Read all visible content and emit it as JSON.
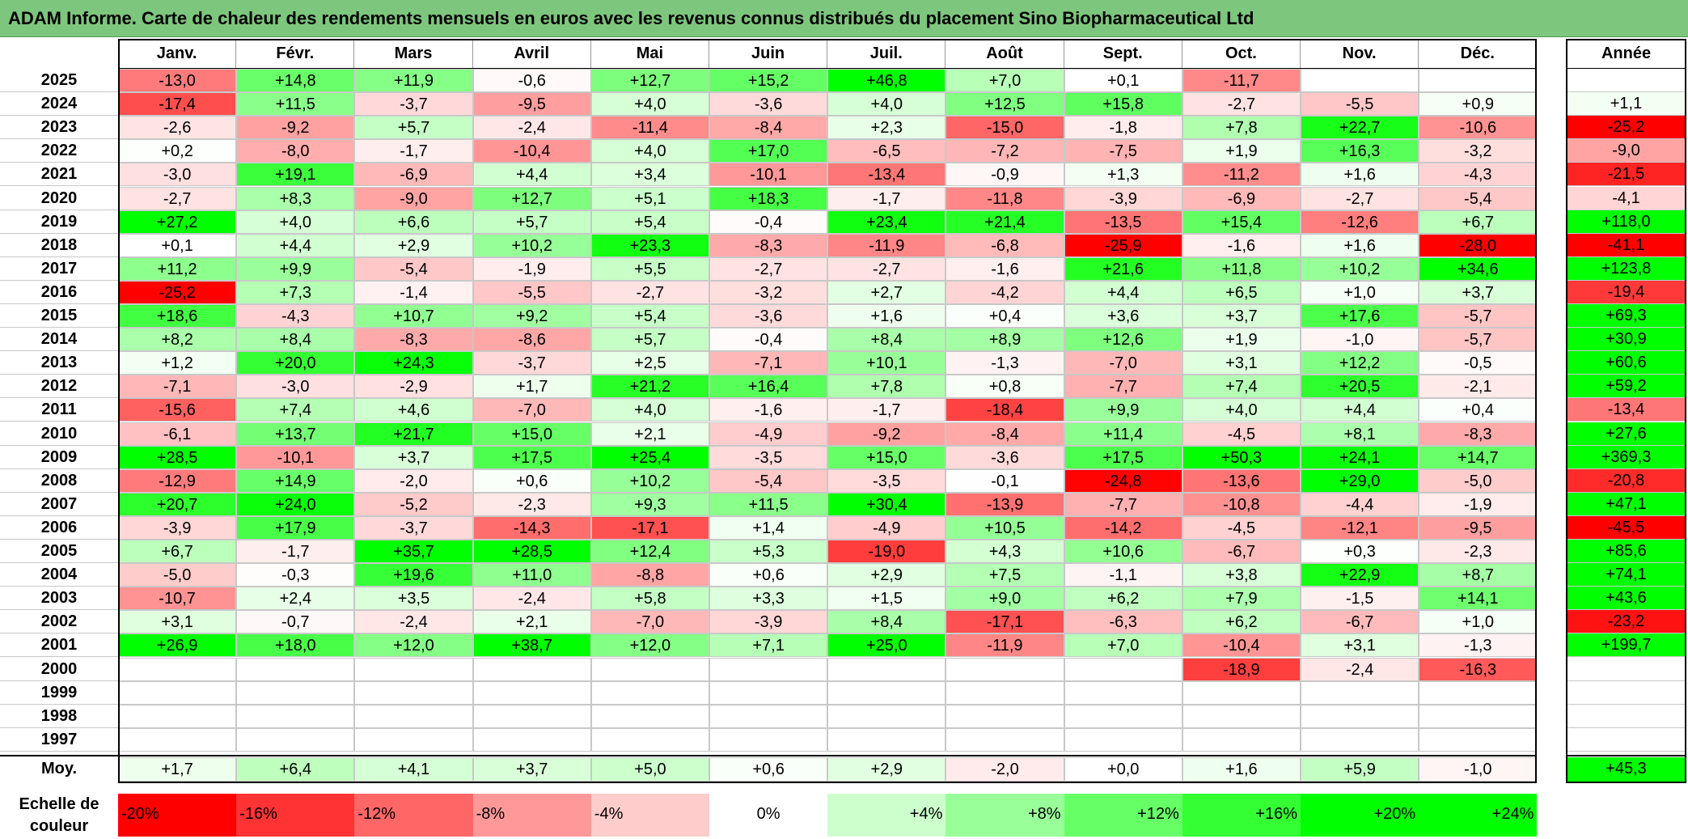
{
  "title": "ADAM Informe. Carte de chaleur des rendements mensuels en euros avec les revenus connus distribués du placement Sino Biopharmaceutical Ltd",
  "colors": {
    "title_bar": "#7dc67d",
    "max_positive": "#00ff00",
    "max_negative": "#ff0000",
    "neutral": "#ffffff"
  },
  "chart_data": {
    "type": "heatmap",
    "title": "ADAM Informe. Carte de chaleur des rendements mensuels en euros avec les revenus connus distribués du placement Sino Biopharmaceutical Ltd",
    "months": [
      "Janv.",
      "Févr.",
      "Mars",
      "Avril",
      "Mai",
      "Juin",
      "Juil.",
      "Août",
      "Sept.",
      "Oct.",
      "Nov.",
      "Déc."
    ],
    "year_column_label": "Année",
    "rows": [
      {
        "year": "2025",
        "values": [
          "-13,0",
          "+14,8",
          "+11,9",
          "-0,6",
          "+12,7",
          "+15,2",
          "+46,8",
          "+7,0",
          "+0,1",
          "-11,7",
          "",
          ""
        ],
        "annual": ""
      },
      {
        "year": "2024",
        "values": [
          "-17,4",
          "+11,5",
          "-3,7",
          "-9,5",
          "+4,0",
          "-3,6",
          "+4,0",
          "+12,5",
          "+15,8",
          "-2,7",
          "-5,5",
          "+0,9"
        ],
        "annual": "+1,1"
      },
      {
        "year": "2023",
        "values": [
          "-2,6",
          "-9,2",
          "+5,7",
          "-2,4",
          "-11,4",
          "-8,4",
          "+2,3",
          "-15,0",
          "-1,8",
          "+7,8",
          "+22,7",
          "-10,6"
        ],
        "annual": "-25,2"
      },
      {
        "year": "2022",
        "values": [
          "+0,2",
          "-8,0",
          "-1,7",
          "-10,4",
          "+4,0",
          "+17,0",
          "-6,5",
          "-7,2",
          "-7,5",
          "+1,9",
          "+16,3",
          "-3,2"
        ],
        "annual": "-9,0"
      },
      {
        "year": "2021",
        "values": [
          "-3,0",
          "+19,1",
          "-6,9",
          "+4,4",
          "+3,4",
          "-10,1",
          "-13,4",
          "-0,9",
          "+1,3",
          "-11,2",
          "+1,6",
          "-4,3"
        ],
        "annual": "-21,5"
      },
      {
        "year": "2020",
        "values": [
          "-2,7",
          "+8,3",
          "-9,0",
          "+12,7",
          "+5,1",
          "+18,3",
          "-1,7",
          "-11,8",
          "-3,9",
          "-6,9",
          "-2,7",
          "-5,4"
        ],
        "annual": "-4,1"
      },
      {
        "year": "2019",
        "values": [
          "+27,2",
          "+4,0",
          "+6,6",
          "+5,7",
          "+5,4",
          "-0,4",
          "+23,4",
          "+21,4",
          "-13,5",
          "+15,4",
          "-12,6",
          "+6,7"
        ],
        "annual": "+118,0"
      },
      {
        "year": "2018",
        "values": [
          "+0,1",
          "+4,4",
          "+2,9",
          "+10,2",
          "+23,3",
          "-8,3",
          "-11,9",
          "-6,8",
          "-25,9",
          "-1,6",
          "+1,6",
          "-28,0"
        ],
        "annual": "-41,1"
      },
      {
        "year": "2017",
        "values": [
          "+11,2",
          "+9,9",
          "-5,4",
          "-1,9",
          "+5,5",
          "-2,7",
          "-2,7",
          "-1,6",
          "+21,6",
          "+11,8",
          "+10,2",
          "+34,6"
        ],
        "annual": "+123,8"
      },
      {
        "year": "2016",
        "values": [
          "-25,2",
          "+7,3",
          "-1,4",
          "-5,5",
          "-2,7",
          "-3,2",
          "+2,7",
          "-4,2",
          "+4,4",
          "+6,5",
          "+1,0",
          "+3,7"
        ],
        "annual": "-19,4"
      },
      {
        "year": "2015",
        "values": [
          "+18,6",
          "-4,3",
          "+10,7",
          "+9,2",
          "+5,4",
          "-3,6",
          "+1,6",
          "+0,4",
          "+3,6",
          "+3,7",
          "+17,6",
          "-5,7"
        ],
        "annual": "+69,3"
      },
      {
        "year": "2014",
        "values": [
          "+8,2",
          "+8,4",
          "-8,3",
          "-8,6",
          "+5,7",
          "-0,4",
          "+8,4",
          "+8,9",
          "+12,6",
          "+1,9",
          "-1,0",
          "-5,7"
        ],
        "annual": "+30,9"
      },
      {
        "year": "2013",
        "values": [
          "+1,2",
          "+20,0",
          "+24,3",
          "-3,7",
          "+2,5",
          "-7,1",
          "+10,1",
          "-1,3",
          "-7,0",
          "+3,1",
          "+12,2",
          "-0,5"
        ],
        "annual": "+60,6"
      },
      {
        "year": "2012",
        "values": [
          "-7,1",
          "-3,0",
          "-2,9",
          "+1,7",
          "+21,2",
          "+16,4",
          "+7,8",
          "+0,8",
          "-7,7",
          "+7,4",
          "+20,5",
          "-2,1"
        ],
        "annual": "+59,2"
      },
      {
        "year": "2011",
        "values": [
          "-15,6",
          "+7,4",
          "+4,6",
          "-7,0",
          "+4,0",
          "-1,6",
          "-1,7",
          "-18,4",
          "+9,9",
          "+4,0",
          "+4,4",
          "+0,4"
        ],
        "annual": "-13,4"
      },
      {
        "year": "2010",
        "values": [
          "-6,1",
          "+13,7",
          "+21,7",
          "+15,0",
          "+2,1",
          "-4,9",
          "-9,2",
          "-8,4",
          "+11,4",
          "-4,5",
          "+8,1",
          "-8,3"
        ],
        "annual": "+27,6"
      },
      {
        "year": "2009",
        "values": [
          "+28,5",
          "-10,1",
          "+3,7",
          "+17,5",
          "+25,4",
          "-3,5",
          "+15,0",
          "-3,6",
          "+17,5",
          "+50,3",
          "+24,1",
          "+14,7"
        ],
        "annual": "+369,3"
      },
      {
        "year": "2008",
        "values": [
          "-12,9",
          "+14,9",
          "-2,0",
          "+0,6",
          "+10,2",
          "-5,4",
          "-3,5",
          "-0,1",
          "-24,8",
          "-13,6",
          "+29,0",
          "-5,0"
        ],
        "annual": "-20,8"
      },
      {
        "year": "2007",
        "values": [
          "+20,7",
          "+24,0",
          "-5,2",
          "-2,3",
          "+9,3",
          "+11,5",
          "+30,4",
          "-13,9",
          "-7,7",
          "-10,8",
          "-4,4",
          "-1,9"
        ],
        "annual": "+47,1"
      },
      {
        "year": "2006",
        "values": [
          "-3,9",
          "+17,9",
          "-3,7",
          "-14,3",
          "-17,1",
          "+1,4",
          "-4,9",
          "+10,5",
          "-14,2",
          "-4,5",
          "-12,1",
          "-9,5"
        ],
        "annual": "-45,5"
      },
      {
        "year": "2005",
        "values": [
          "+6,7",
          "-1,7",
          "+35,7",
          "+28,5",
          "+12,4",
          "+5,3",
          "-19,0",
          "+4,3",
          "+10,6",
          "-6,7",
          "+0,3",
          "-2,3"
        ],
        "annual": "+85,6"
      },
      {
        "year": "2004",
        "values": [
          "-5,0",
          "-0,3",
          "+19,6",
          "+11,0",
          "-8,8",
          "+0,6",
          "+2,9",
          "+7,5",
          "-1,1",
          "+3,8",
          "+22,9",
          "+8,7"
        ],
        "annual": "+74,1"
      },
      {
        "year": "2003",
        "values": [
          "-10,7",
          "+2,4",
          "+3,5",
          "-2,4",
          "+5,8",
          "+3,3",
          "+1,5",
          "+9,0",
          "+6,2",
          "+7,9",
          "-1,5",
          "+14,1"
        ],
        "annual": "+43,6"
      },
      {
        "year": "2002",
        "values": [
          "+3,1",
          "-0,7",
          "-2,4",
          "+2,1",
          "-7,0",
          "-3,9",
          "+8,4",
          "-17,1",
          "-6,3",
          "+6,2",
          "-6,7",
          "+1,0"
        ],
        "annual": "-23,2"
      },
      {
        "year": "2001",
        "values": [
          "+26,9",
          "+18,0",
          "+12,0",
          "+38,7",
          "+12,0",
          "+7,1",
          "+25,0",
          "-11,9",
          "+7,0",
          "-10,4",
          "+3,1",
          "-1,3"
        ],
        "annual": "+199,7"
      },
      {
        "year": "2000",
        "values": [
          "",
          "",
          "",
          "",
          "",
          "",
          "",
          "",
          "",
          "-18,9",
          "-2,4",
          "-16,3"
        ],
        "annual": ""
      },
      {
        "year": "1999",
        "values": [
          "",
          "",
          "",
          "",
          "",
          "",
          "",
          "",
          "",
          "",
          "",
          ""
        ],
        "annual": ""
      },
      {
        "year": "1998",
        "values": [
          "",
          "",
          "",
          "",
          "",
          "",
          "",
          "",
          "",
          "",
          "",
          ""
        ],
        "annual": ""
      },
      {
        "year": "1997",
        "values": [
          "",
          "",
          "",
          "",
          "",
          "",
          "",
          "",
          "",
          "",
          "",
          ""
        ],
        "annual": ""
      }
    ],
    "average": {
      "label": "Moy.",
      "values": [
        "+1,7",
        "+6,4",
        "+4,1",
        "+3,7",
        "+5,0",
        "+0,6",
        "+2,9",
        "-2,0",
        "+0,0",
        "+1,6",
        "+5,9",
        "-1,0"
      ],
      "annual": "+45,3"
    },
    "scale": {
      "label": "Echelle de couleur",
      "steps": [
        "-20%",
        "-16%",
        "-12%",
        "-8%",
        "-4%",
        "0%",
        "+4%",
        "+8%",
        "+12%",
        "+16%",
        "+20%",
        "+24%"
      ]
    }
  }
}
